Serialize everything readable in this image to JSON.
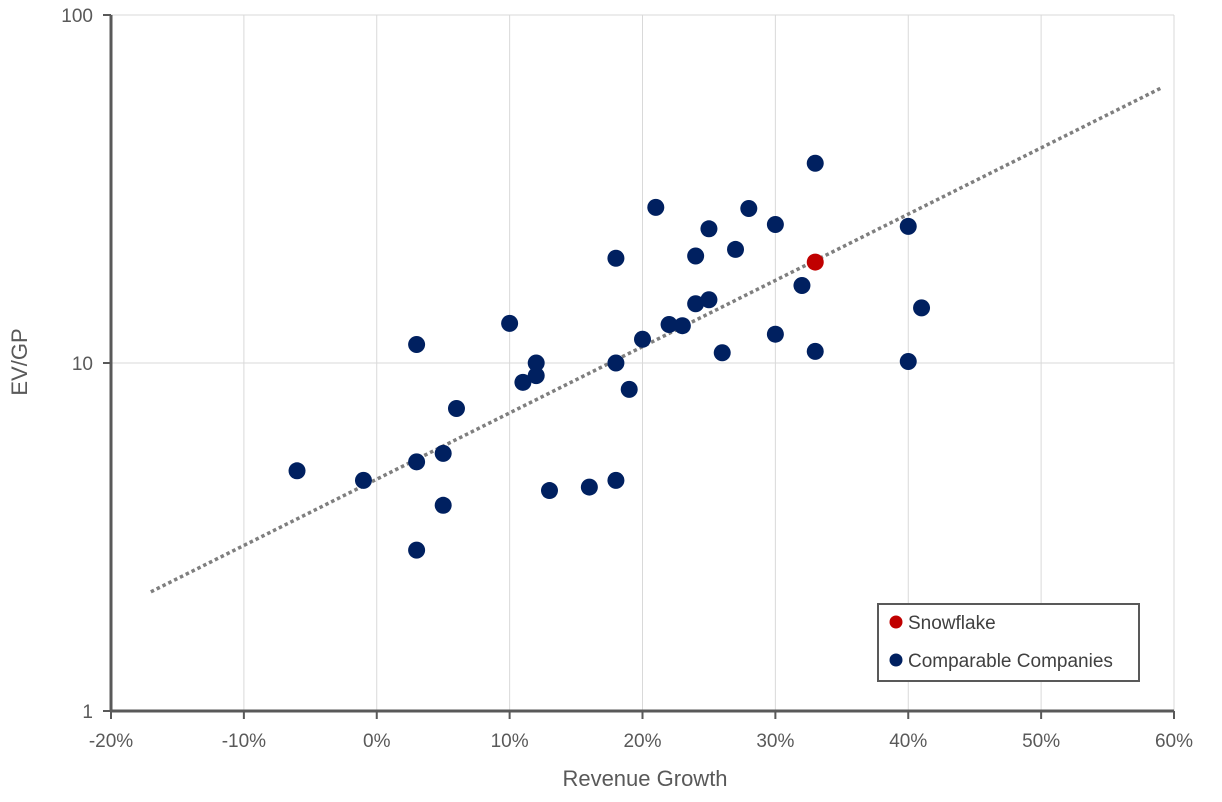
{
  "chart_data": {
    "type": "scatter",
    "title": "",
    "xlabel": "Revenue Growth",
    "ylabel": "EV/GP",
    "xlim": [
      -0.2,
      0.6
    ],
    "ylim": [
      1,
      100
    ],
    "yscale": "log",
    "grid": true,
    "x_ticks": [
      {
        "value": -0.2,
        "label": "-20%"
      },
      {
        "value": -0.1,
        "label": "-10%"
      },
      {
        "value": 0.0,
        "label": "0%"
      },
      {
        "value": 0.1,
        "label": "10%"
      },
      {
        "value": 0.2,
        "label": "20%"
      },
      {
        "value": 0.3,
        "label": "30%"
      },
      {
        "value": 0.4,
        "label": "40%"
      },
      {
        "value": 0.5,
        "label": "50%"
      },
      {
        "value": 0.6,
        "label": "60%"
      }
    ],
    "y_ticks": [
      {
        "value": 1,
        "label": "1"
      },
      {
        "value": 10,
        "label": "10"
      },
      {
        "value": 100,
        "label": "100"
      }
    ],
    "legend_position": "bottom-right",
    "series": [
      {
        "name": "Snowflake",
        "color": "#c00000",
        "points": [
          {
            "x": 0.33,
            "y": 19.5
          }
        ]
      },
      {
        "name": "Comparable Companies",
        "color": "#002060",
        "points": [
          {
            "x": -0.06,
            "y": 4.9
          },
          {
            "x": -0.01,
            "y": 4.6
          },
          {
            "x": 0.03,
            "y": 11.3
          },
          {
            "x": 0.03,
            "y": 5.2
          },
          {
            "x": 0.03,
            "y": 2.9
          },
          {
            "x": 0.05,
            "y": 5.5
          },
          {
            "x": 0.05,
            "y": 3.9
          },
          {
            "x": 0.06,
            "y": 7.4
          },
          {
            "x": 0.1,
            "y": 13.0
          },
          {
            "x": 0.11,
            "y": 8.8
          },
          {
            "x": 0.12,
            "y": 10.0
          },
          {
            "x": 0.12,
            "y": 9.2
          },
          {
            "x": 0.13,
            "y": 4.3
          },
          {
            "x": 0.16,
            "y": 4.4
          },
          {
            "x": 0.18,
            "y": 20.0
          },
          {
            "x": 0.18,
            "y": 10.0
          },
          {
            "x": 0.18,
            "y": 4.6
          },
          {
            "x": 0.19,
            "y": 8.4
          },
          {
            "x": 0.2,
            "y": 11.7
          },
          {
            "x": 0.21,
            "y": 28.0
          },
          {
            "x": 0.22,
            "y": 12.9
          },
          {
            "x": 0.23,
            "y": 12.8
          },
          {
            "x": 0.24,
            "y": 20.3
          },
          {
            "x": 0.24,
            "y": 14.8
          },
          {
            "x": 0.25,
            "y": 24.3
          },
          {
            "x": 0.25,
            "y": 15.2
          },
          {
            "x": 0.26,
            "y": 10.7
          },
          {
            "x": 0.27,
            "y": 21.2
          },
          {
            "x": 0.28,
            "y": 27.8
          },
          {
            "x": 0.3,
            "y": 25.0
          },
          {
            "x": 0.3,
            "y": 12.1
          },
          {
            "x": 0.32,
            "y": 16.7
          },
          {
            "x": 0.33,
            "y": 37.5
          },
          {
            "x": 0.33,
            "y": 10.8
          },
          {
            "x": 0.4,
            "y": 24.7
          },
          {
            "x": 0.4,
            "y": 10.1
          },
          {
            "x": 0.41,
            "y": 14.4
          }
        ]
      }
    ],
    "trendline": {
      "type": "exponential",
      "style": "dotted",
      "color": "#7f7f7f",
      "x_start": -0.17,
      "x_end": 0.59,
      "y_start": 2.2,
      "y_end": 61.6
    }
  }
}
